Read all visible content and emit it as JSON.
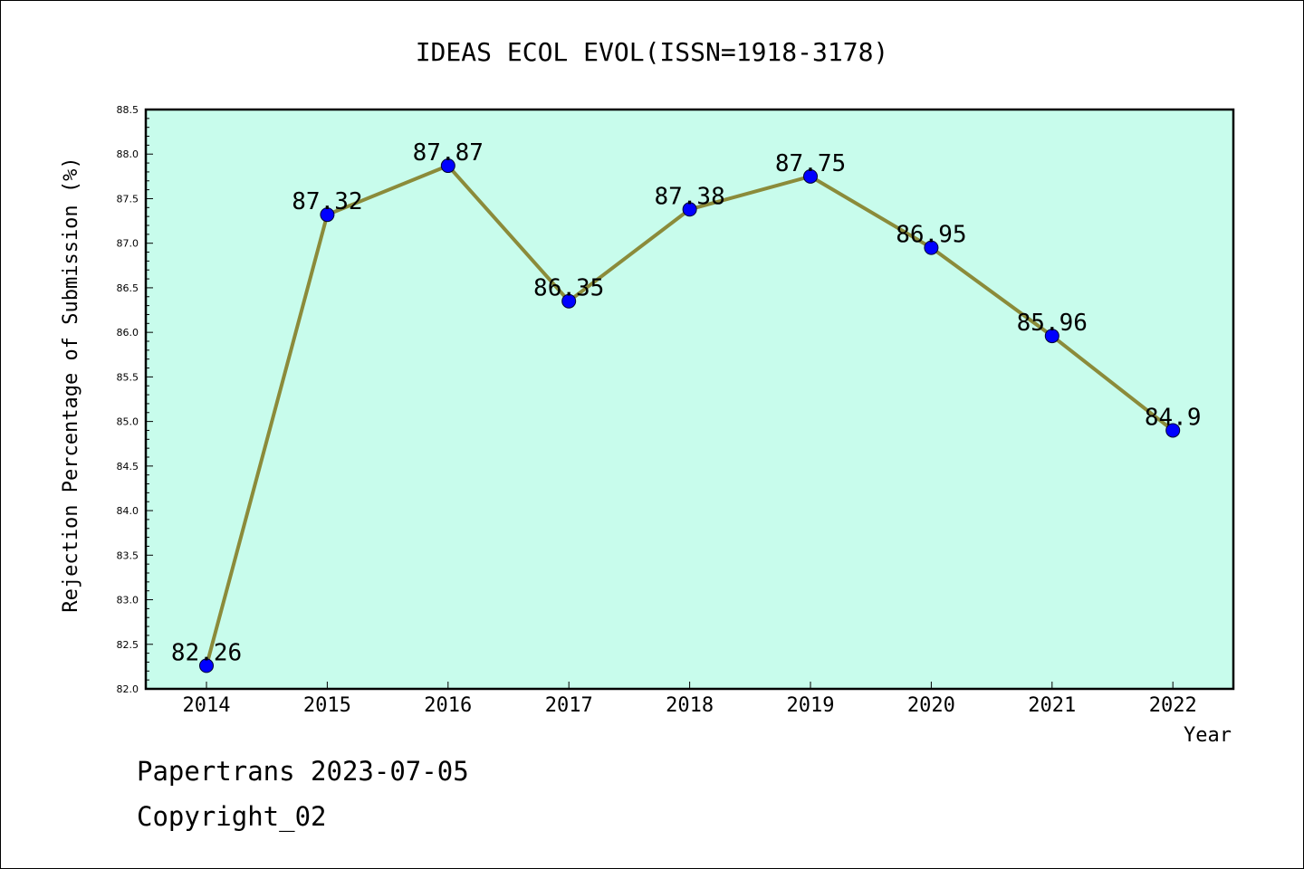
{
  "chart_data": {
    "type": "line",
    "title": "IDEAS ECOL EVOL(ISSN=1918-3178)",
    "xlabel": "Year",
    "ylabel": "Rejection Percentage of Submission (%)",
    "categories": [
      "2014",
      "2015",
      "2016",
      "2017",
      "2018",
      "2019",
      "2020",
      "2021",
      "2022"
    ],
    "series": [
      {
        "values": [
          82.26,
          87.32,
          87.87,
          86.35,
          87.38,
          87.75,
          86.95,
          85.96,
          84.9
        ],
        "data_labels": [
          "82.26",
          "87.32",
          "87.87",
          "86.35",
          "87.38",
          "87.75",
          "86.95",
          "85.96",
          "84.9"
        ]
      }
    ],
    "ylim": [
      82.0,
      88.5
    ],
    "yticks": [
      "82.0",
      "82.5",
      "83.0",
      "83.5",
      "84.0",
      "84.5",
      "85.0",
      "85.5",
      "86.0",
      "86.5",
      "87.0",
      "87.5",
      "88.0",
      "88.5"
    ],
    "grid": false,
    "legend": "none",
    "colors": {
      "plot_background": "#c8fcec",
      "line": "#8b8b3a",
      "marker": "#0000ff"
    }
  },
  "footer": {
    "line1": "Papertrans 2023-07-05",
    "line2": "Copyright_02"
  }
}
